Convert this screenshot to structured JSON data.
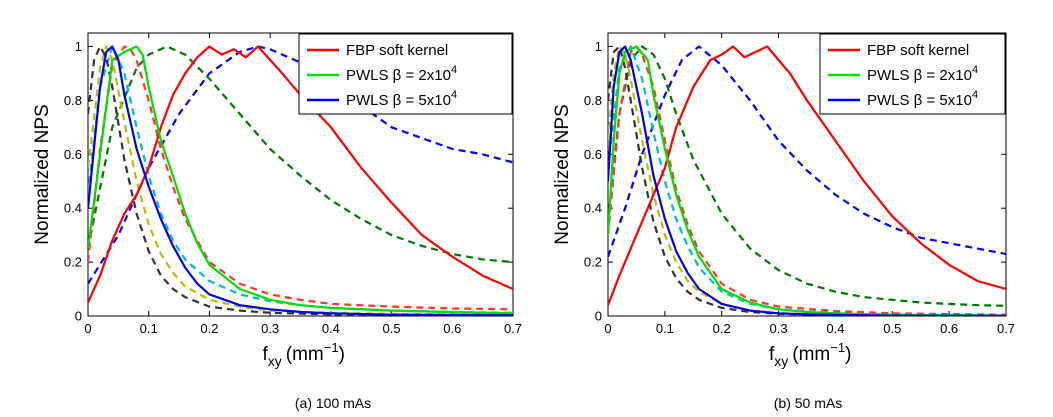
{
  "chart_data": [
    {
      "type": "line",
      "caption": "(a) 100 mAs",
      "xlabel": "f",
      "xlabel_sub": "xy",
      "xlabel_unit": "(mm",
      "xlabel_exp": "−1",
      "xlabel_close": ")",
      "ylabel": "Normalized NPS",
      "xlim": [
        0,
        0.7
      ],
      "ylim": [
        0,
        1.05
      ],
      "xticks": [
        "0",
        "0.1",
        "0.2",
        "0.3",
        "0.4",
        "0.5",
        "0.6",
        "0.7"
      ],
      "xtick_values": [
        0,
        0.1,
        0.2,
        0.3,
        0.4,
        0.5,
        0.6,
        0.7
      ],
      "yticks": [
        "0",
        "0.2",
        "0.4",
        "0.6",
        "0.8",
        "1"
      ],
      "ytick_values": [
        0,
        0.2,
        0.4,
        0.6,
        0.8,
        1.0
      ],
      "legend": [
        "FBP soft kernel",
        "PWLS β = 2x10",
        "PWLS β = 5x10"
      ],
      "legend_exp": [
        "",
        "4",
        "4"
      ],
      "series": [
        {
          "name": "FBP soft kernel",
          "color": "#ff0000",
          "style": "solid",
          "x": [
            0,
            0.02,
            0.04,
            0.06,
            0.08,
            0.1,
            0.12,
            0.14,
            0.16,
            0.18,
            0.2,
            0.22,
            0.24,
            0.26,
            0.28,
            0.3,
            0.32,
            0.35,
            0.4,
            0.45,
            0.5,
            0.55,
            0.6,
            0.65,
            0.7
          ],
          "y": [
            0.05,
            0.15,
            0.28,
            0.38,
            0.45,
            0.55,
            0.7,
            0.82,
            0.9,
            0.96,
            1.0,
            0.97,
            0.99,
            0.96,
            1.0,
            0.95,
            0.9,
            0.82,
            0.7,
            0.55,
            0.42,
            0.3,
            0.22,
            0.15,
            0.1
          ]
        },
        {
          "name": "PWLS β = 2x10^4",
          "color": "#00dd00",
          "style": "solid",
          "x": [
            0,
            0.02,
            0.04,
            0.06,
            0.08,
            0.09,
            0.1,
            0.12,
            0.14,
            0.16,
            0.18,
            0.2,
            0.25,
            0.3,
            0.35,
            0.4,
            0.5,
            0.6,
            0.7
          ],
          "y": [
            0.25,
            0.6,
            0.95,
            0.98,
            1.0,
            0.97,
            0.85,
            0.65,
            0.52,
            0.38,
            0.27,
            0.19,
            0.1,
            0.06,
            0.04,
            0.03,
            0.02,
            0.015,
            0.01
          ]
        },
        {
          "name": "PWLS β = 5x10^4",
          "color": "#0000ee",
          "style": "solid",
          "x": [
            0,
            0.02,
            0.03,
            0.04,
            0.05,
            0.06,
            0.08,
            0.1,
            0.12,
            0.14,
            0.16,
            0.18,
            0.2,
            0.25,
            0.3,
            0.35,
            0.4,
            0.5,
            0.6,
            0.7
          ],
          "y": [
            0.4,
            0.85,
            0.98,
            1.0,
            0.95,
            0.82,
            0.62,
            0.48,
            0.36,
            0.26,
            0.18,
            0.12,
            0.08,
            0.04,
            0.025,
            0.015,
            0.01,
            0.005,
            0.004,
            0.003
          ]
        },
        {
          "name": "dashed blue",
          "color": "#0000ff",
          "style": "dashed",
          "x": [
            0,
            0.05,
            0.1,
            0.15,
            0.2,
            0.25,
            0.28,
            0.3,
            0.35,
            0.4,
            0.45,
            0.5,
            0.55,
            0.6,
            0.65,
            0.7
          ],
          "y": [
            0.12,
            0.3,
            0.55,
            0.75,
            0.9,
            0.98,
            1.0,
            0.99,
            0.94,
            0.86,
            0.78,
            0.7,
            0.66,
            0.62,
            0.6,
            0.57
          ]
        },
        {
          "name": "dashed dark green",
          "color": "#007700",
          "style": "dashed",
          "x": [
            0,
            0.04,
            0.08,
            0.1,
            0.13,
            0.16,
            0.2,
            0.25,
            0.3,
            0.35,
            0.4,
            0.45,
            0.5,
            0.55,
            0.6,
            0.65,
            0.7
          ],
          "y": [
            0.25,
            0.7,
            0.92,
            0.97,
            1.0,
            0.97,
            0.88,
            0.75,
            0.62,
            0.52,
            0.43,
            0.36,
            0.3,
            0.26,
            0.23,
            0.21,
            0.2
          ]
        },
        {
          "name": "dashed red",
          "color": "#ff3333",
          "style": "dashed",
          "x": [
            0,
            0.02,
            0.04,
            0.06,
            0.07,
            0.08,
            0.1,
            0.12,
            0.14,
            0.16,
            0.2,
            0.25,
            0.3,
            0.35,
            0.4,
            0.5,
            0.6,
            0.7
          ],
          "y": [
            0.2,
            0.62,
            0.93,
            1.0,
            0.99,
            0.95,
            0.8,
            0.62,
            0.48,
            0.36,
            0.2,
            0.12,
            0.08,
            0.06,
            0.045,
            0.035,
            0.028,
            0.025
          ]
        },
        {
          "name": "dashed cyan",
          "color": "#00bbcc",
          "style": "dashed",
          "x": [
            0,
            0.02,
            0.04,
            0.06,
            0.08,
            0.1,
            0.12,
            0.14,
            0.16,
            0.2,
            0.25,
            0.3,
            0.35,
            0.4,
            0.5,
            0.6,
            0.7
          ],
          "y": [
            0.45,
            0.85,
            1.0,
            0.9,
            0.7,
            0.52,
            0.38,
            0.28,
            0.21,
            0.13,
            0.08,
            0.055,
            0.04,
            0.03,
            0.02,
            0.015,
            0.012
          ]
        },
        {
          "name": "dashed yellow",
          "color": "#bbbb00",
          "style": "dashed",
          "x": [
            0,
            0.02,
            0.03,
            0.04,
            0.06,
            0.08,
            0.1,
            0.12,
            0.14,
            0.16,
            0.2,
            0.25,
            0.3,
            0.4,
            0.5,
            0.6,
            0.7
          ],
          "y": [
            0.55,
            0.92,
            1.0,
            0.95,
            0.72,
            0.5,
            0.34,
            0.23,
            0.16,
            0.11,
            0.06,
            0.035,
            0.02,
            0.012,
            0.008,
            0.006,
            0.005
          ]
        },
        {
          "name": "dashed gray",
          "color": "#333333",
          "style": "dashed",
          "x": [
            0,
            0.01,
            0.02,
            0.03,
            0.04,
            0.06,
            0.08,
            0.1,
            0.12,
            0.14,
            0.16,
            0.2,
            0.25,
            0.3,
            0.4,
            0.5,
            0.6,
            0.7
          ],
          "y": [
            0.75,
            0.95,
            1.0,
            0.96,
            0.85,
            0.58,
            0.38,
            0.24,
            0.15,
            0.1,
            0.07,
            0.035,
            0.02,
            0.012,
            0.006,
            0.004,
            0.003,
            0.002
          ]
        }
      ]
    },
    {
      "type": "line",
      "caption": "(b) 50 mAs",
      "xlabel": "f",
      "xlabel_sub": "xy",
      "xlabel_unit": "(mm",
      "xlabel_exp": "−1",
      "xlabel_close": ")",
      "ylabel": "Normalized NPS",
      "xlim": [
        0,
        0.7
      ],
      "ylim": [
        0,
        1.05
      ],
      "xticks": [
        "0",
        "0.1",
        "0.2",
        "0.3",
        "0.4",
        "0.5",
        "0.6",
        "0.7"
      ],
      "xtick_values": [
        0,
        0.1,
        0.2,
        0.3,
        0.4,
        0.5,
        0.6,
        0.7
      ],
      "yticks": [
        "0",
        "0.2",
        "0.4",
        "0.6",
        "0.8",
        "1"
      ],
      "ytick_values": [
        0,
        0.2,
        0.4,
        0.6,
        0.8,
        1.0
      ],
      "legend": [
        "FBP soft kernel",
        "PWLS β = 2x10",
        "PWLS β = 5x10"
      ],
      "legend_exp": [
        "",
        "4",
        "4"
      ],
      "series": [
        {
          "name": "FBP soft kernel",
          "color": "#ff0000",
          "style": "solid",
          "x": [
            0,
            0.02,
            0.05,
            0.08,
            0.1,
            0.12,
            0.15,
            0.18,
            0.2,
            0.22,
            0.24,
            0.26,
            0.28,
            0.3,
            0.32,
            0.35,
            0.4,
            0.45,
            0.5,
            0.55,
            0.6,
            0.65,
            0.7
          ],
          "y": [
            0.04,
            0.15,
            0.3,
            0.45,
            0.55,
            0.7,
            0.85,
            0.95,
            0.97,
            1.0,
            0.96,
            0.98,
            1.0,
            0.95,
            0.9,
            0.8,
            0.65,
            0.5,
            0.37,
            0.27,
            0.19,
            0.13,
            0.1
          ]
        },
        {
          "name": "PWLS β = 2x10^4",
          "color": "#00dd00",
          "style": "solid",
          "x": [
            0,
            0.01,
            0.02,
            0.03,
            0.05,
            0.07,
            0.08,
            0.1,
            0.12,
            0.14,
            0.16,
            0.2,
            0.25,
            0.3,
            0.35,
            0.4,
            0.5,
            0.6,
            0.7
          ],
          "y": [
            0.3,
            0.65,
            0.9,
            0.98,
            1.0,
            0.95,
            0.82,
            0.62,
            0.45,
            0.32,
            0.22,
            0.1,
            0.05,
            0.025,
            0.015,
            0.01,
            0.005,
            0.003,
            0.002
          ]
        },
        {
          "name": "PWLS β = 5x10^4",
          "color": "#0000ee",
          "style": "solid",
          "x": [
            0,
            0.01,
            0.02,
            0.03,
            0.04,
            0.06,
            0.08,
            0.1,
            0.12,
            0.14,
            0.16,
            0.2,
            0.25,
            0.3,
            0.35,
            0.4,
            0.5,
            0.6,
            0.7
          ],
          "y": [
            0.5,
            0.85,
            0.98,
            1.0,
            0.95,
            0.75,
            0.52,
            0.36,
            0.24,
            0.16,
            0.1,
            0.045,
            0.02,
            0.01,
            0.006,
            0.004,
            0.002,
            0.001,
            0.001
          ]
        },
        {
          "name": "dashed blue",
          "color": "#0000ff",
          "style": "dashed",
          "x": [
            0,
            0.03,
            0.06,
            0.1,
            0.13,
            0.16,
            0.2,
            0.25,
            0.3,
            0.35,
            0.4,
            0.45,
            0.5,
            0.55,
            0.6,
            0.65,
            0.7
          ],
          "y": [
            0.22,
            0.4,
            0.6,
            0.82,
            0.95,
            1.0,
            0.93,
            0.8,
            0.65,
            0.54,
            0.45,
            0.38,
            0.33,
            0.29,
            0.27,
            0.25,
            0.23
          ]
        },
        {
          "name": "dashed dark green",
          "color": "#007700",
          "style": "dashed",
          "x": [
            0,
            0.02,
            0.04,
            0.06,
            0.08,
            0.1,
            0.12,
            0.15,
            0.2,
            0.25,
            0.3,
            0.35,
            0.4,
            0.45,
            0.5,
            0.55,
            0.6,
            0.65,
            0.7
          ],
          "y": [
            0.35,
            0.75,
            0.95,
            1.0,
            0.97,
            0.88,
            0.75,
            0.58,
            0.38,
            0.25,
            0.17,
            0.12,
            0.09,
            0.07,
            0.06,
            0.05,
            0.045,
            0.04,
            0.038
          ]
        },
        {
          "name": "dashed red",
          "color": "#ff3333",
          "style": "dashed",
          "x": [
            0,
            0.02,
            0.04,
            0.05,
            0.06,
            0.08,
            0.1,
            0.12,
            0.14,
            0.16,
            0.2,
            0.25,
            0.3,
            0.4,
            0.5,
            0.6,
            0.7
          ],
          "y": [
            0.3,
            0.75,
            0.98,
            1.0,
            0.97,
            0.85,
            0.65,
            0.47,
            0.34,
            0.24,
            0.12,
            0.06,
            0.035,
            0.018,
            0.01,
            0.007,
            0.005
          ]
        },
        {
          "name": "dashed cyan",
          "color": "#00bbcc",
          "style": "dashed",
          "x": [
            0,
            0.02,
            0.04,
            0.06,
            0.08,
            0.1,
            0.12,
            0.14,
            0.16,
            0.2,
            0.25,
            0.3,
            0.4,
            0.5,
            0.6,
            0.7
          ],
          "y": [
            0.55,
            0.92,
            1.0,
            0.88,
            0.68,
            0.5,
            0.36,
            0.26,
            0.18,
            0.09,
            0.045,
            0.025,
            0.01,
            0.005,
            0.003,
            0.002
          ]
        },
        {
          "name": "dashed yellow",
          "color": "#bbbb00",
          "style": "dashed",
          "x": [
            0,
            0.01,
            0.02,
            0.03,
            0.04,
            0.06,
            0.08,
            0.1,
            0.12,
            0.14,
            0.16,
            0.2,
            0.25,
            0.3,
            0.4,
            0.5,
            0.6,
            0.7
          ],
          "y": [
            0.65,
            0.9,
            1.0,
            0.97,
            0.88,
            0.65,
            0.45,
            0.3,
            0.2,
            0.13,
            0.09,
            0.045,
            0.02,
            0.01,
            0.004,
            0.002,
            0.001,
            0.001
          ]
        },
        {
          "name": "dashed gray",
          "color": "#333333",
          "style": "dashed",
          "x": [
            0,
            0.01,
            0.02,
            0.03,
            0.04,
            0.06,
            0.08,
            0.1,
            0.12,
            0.14,
            0.16,
            0.2,
            0.25,
            0.3,
            0.4,
            0.5,
            0.6,
            0.7
          ],
          "y": [
            0.8,
            0.98,
            1.0,
            0.92,
            0.8,
            0.55,
            0.35,
            0.22,
            0.14,
            0.09,
            0.06,
            0.03,
            0.015,
            0.008,
            0.003,
            0.002,
            0.001,
            0.001
          ]
        }
      ]
    }
  ]
}
